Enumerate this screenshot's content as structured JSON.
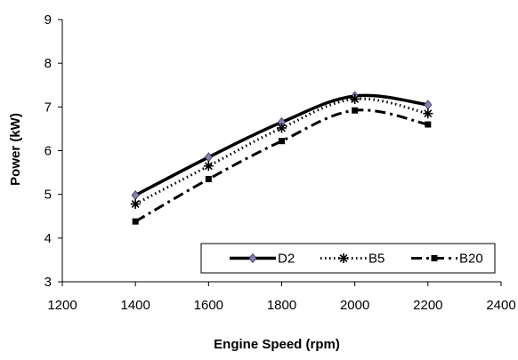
{
  "chart_data": {
    "type": "line",
    "xlabel": "Engine Speed (rpm)",
    "ylabel": "Power (kW)",
    "xlim": [
      1200,
      2400
    ],
    "ylim": [
      3,
      9
    ],
    "xticks": [
      1200,
      1400,
      1600,
      1800,
      2000,
      2200,
      2400
    ],
    "yticks": [
      3,
      4,
      5,
      6,
      7,
      8,
      9
    ],
    "grid": false,
    "legend_placement": "bottom-right",
    "x": [
      1400,
      1600,
      1800,
      2000,
      2200
    ],
    "series": [
      {
        "name": "D2",
        "values": [
          4.98,
          5.85,
          6.65,
          7.25,
          7.05
        ],
        "line": "solid",
        "marker": "diamond",
        "color": "#000000",
        "marker_color": "#8a7fb0"
      },
      {
        "name": "B5",
        "values": [
          4.78,
          5.65,
          6.52,
          7.18,
          6.85
        ],
        "line": "dotted",
        "marker": "asterisk",
        "color": "#000000",
        "marker_color": "#000000"
      },
      {
        "name": "B20",
        "values": [
          4.38,
          5.35,
          6.22,
          6.92,
          6.6
        ],
        "line": "dashdot",
        "marker": "square",
        "color": "#000000",
        "marker_color": "#000000"
      }
    ]
  }
}
